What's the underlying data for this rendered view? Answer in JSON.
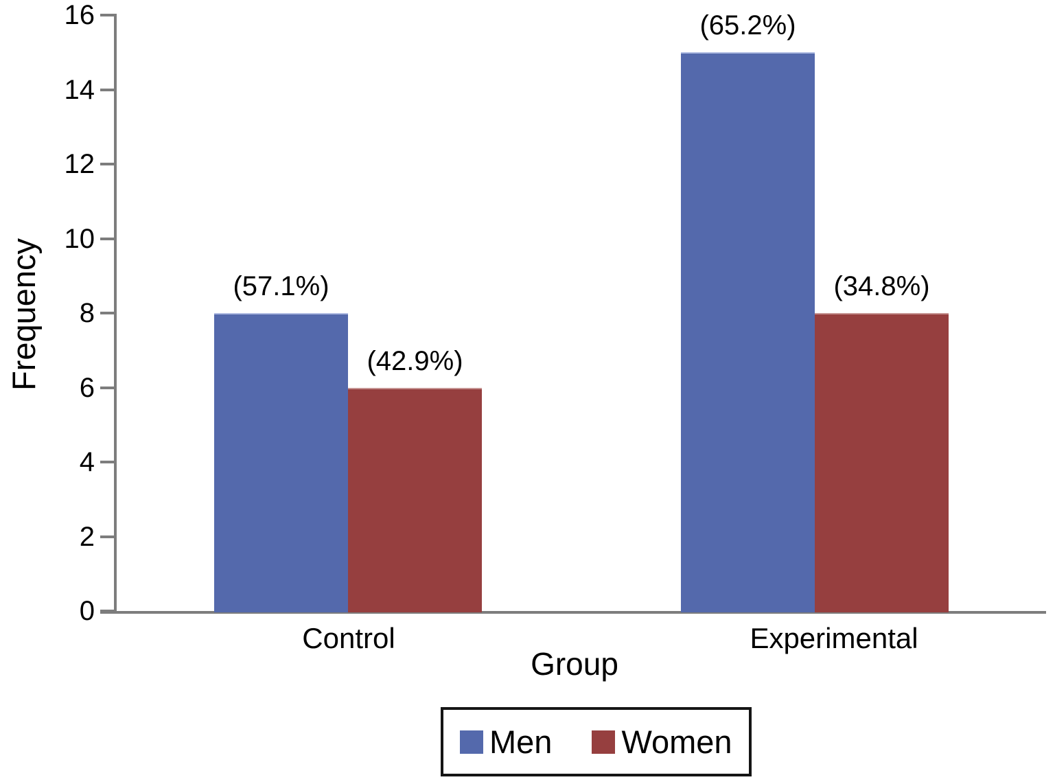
{
  "figure": {
    "background_color": "#ffffff",
    "axis_color": "#7d7d7d",
    "text_color": "#000000",
    "legend_border_color": "#151515"
  },
  "chart_data": {
    "type": "bar",
    "title": "",
    "xlabel": "Group",
    "ylabel": "Frequency",
    "ylim": [
      0,
      16
    ],
    "yticks": [
      0,
      2,
      4,
      6,
      8,
      10,
      12,
      14,
      16
    ],
    "categories": [
      "Control",
      "Experimental"
    ],
    "series": [
      {
        "name": "Men",
        "color": "#5469ac",
        "edge_color": "#b0bce2",
        "values": [
          8,
          15
        ],
        "bar_labels": [
          "(57.1%)",
          "(65.2%)"
        ]
      },
      {
        "name": "Women",
        "color": "#963f3f",
        "edge_color": "#c69492",
        "values": [
          6,
          8
        ],
        "bar_labels": [
          "(42.9%)",
          "(34.8%)"
        ]
      }
    ],
    "grid": false,
    "legend_position": "bottom-center"
  }
}
